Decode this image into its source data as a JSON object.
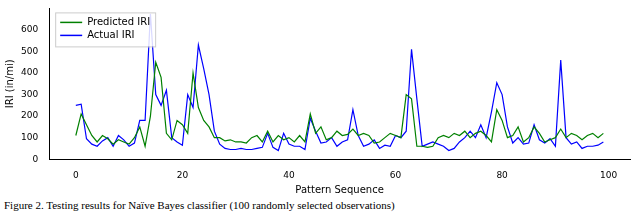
{
  "chart_data": {
    "type": "line",
    "caption": "Figure 2. Testing results for Naïve Bayes classifier (100 randomly selected observations)",
    "x_label": "Pattern Sequence",
    "y_label": "IRI (in/mi)",
    "x": [
      0,
      1,
      2,
      3,
      4,
      5,
      6,
      7,
      8,
      9,
      10,
      11,
      12,
      13,
      14,
      15,
      16,
      17,
      18,
      19,
      20,
      21,
      22,
      23,
      24,
      25,
      26,
      27,
      28,
      29,
      30,
      31,
      32,
      33,
      34,
      35,
      36,
      37,
      38,
      39,
      40,
      41,
      42,
      43,
      44,
      45,
      46,
      47,
      48,
      49,
      50,
      51,
      52,
      53,
      54,
      55,
      56,
      57,
      58,
      59,
      60,
      61,
      62,
      63,
      64,
      65,
      66,
      67,
      68,
      69,
      70,
      71,
      72,
      73,
      74,
      75,
      76,
      77,
      78,
      79,
      80,
      81,
      82,
      83,
      84,
      85,
      86,
      87,
      88,
      89,
      90,
      91,
      92,
      93,
      94,
      95,
      96,
      97,
      98,
      99
    ],
    "series": [
      {
        "name": "Predicted IRI",
        "color": "#008000",
        "values": [
          110,
          210,
          160,
          110,
          80,
          110,
          95,
          70,
          90,
          80,
          70,
          100,
          150,
          60,
          200,
          450,
          380,
          120,
          90,
          180,
          160,
          120,
          400,
          240,
          180,
          150,
          100,
          100,
          85,
          90,
          80,
          80,
          75,
          100,
          110,
          80,
          130,
          80,
          110,
          90,
          100,
          80,
          110,
          80,
          210,
          120,
          150,
          90,
          100,
          130,
          110,
          115,
          140,
          110,
          120,
          110,
          75,
          80,
          100,
          120,
          110,
          100,
          300,
          280,
          60,
          60,
          55,
          60,
          100,
          110,
          100,
          120,
          110,
          130,
          100,
          120,
          130,
          110,
          80,
          230,
          180,
          100,
          110,
          150,
          80,
          100,
          150,
          120,
          80,
          90,
          100,
          140,
          100,
          120,
          110,
          90,
          110,
          120,
          100,
          120
        ]
      },
      {
        "name": "Actual IRI",
        "color": "#0000ff",
        "values": [
          250,
          255,
          95,
          70,
          60,
          85,
          100,
          60,
          110,
          90,
          60,
          75,
          180,
          180,
          675,
          300,
          250,
          320,
          100,
          80,
          65,
          300,
          240,
          530,
          420,
          300,
          130,
          70,
          50,
          45,
          45,
          50,
          45,
          45,
          50,
          55,
          120,
          55,
          40,
          120,
          70,
          60,
          60,
          45,
          190,
          130,
          75,
          80,
          100,
          60,
          80,
          90,
          230,
          110,
          60,
          70,
          90,
          50,
          65,
          60,
          110,
          100,
          130,
          510,
          280,
          60,
          70,
          80,
          70,
          60,
          40,
          50,
          80,
          100,
          130,
          100,
          160,
          100,
          220,
          355,
          300,
          150,
          75,
          100,
          70,
          75,
          160,
          90,
          75,
          95,
          60,
          460,
          100,
          70,
          80,
          50,
          60,
          60,
          65,
          80
        ]
      }
    ],
    "xlim": [
      -5,
      104
    ],
    "xticks": [
      0,
      20,
      40,
      60,
      80,
      100
    ],
    "ylim": [
      0,
      700
    ],
    "yticks": [
      0,
      100,
      200,
      300,
      400,
      500,
      600
    ],
    "grid": false,
    "legend": "upper left"
  }
}
